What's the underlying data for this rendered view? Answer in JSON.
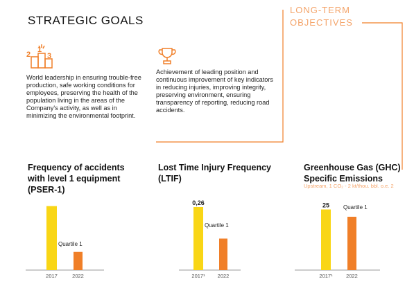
{
  "header": {
    "title": "STRATEGIC GOALS",
    "side_title": "LONG-TERM OBJECTIVES"
  },
  "goals": [
    {
      "text": "World leadership in ensuring trouble-free production, safe working conditions for employees, preserving the health of the population living in the areas of the Company's activity, as well as in minimizing the environmental footprint."
    },
    {
      "text": "Achievement of leading position and continuous improvement of key indicators in reducing injuries, improving integrity, preserving environment, ensuring transparency of reporting, reducing road accidents."
    }
  ],
  "chart_data": [
    {
      "type": "bar",
      "title": "Frequency of accidents with level 1 equipment (PSER-1)",
      "categories": [
        "2017",
        "2022"
      ],
      "values": [
        88,
        25
      ],
      "colors": [
        "#f9d616",
        "#f07f28"
      ],
      "ylim": [
        0,
        100
      ],
      "annotation": "Quartile 1"
    },
    {
      "type": "bar",
      "title": "Lost Time Injury Frequency (LTIF)",
      "categories": [
        "2017¹",
        "2022"
      ],
      "values": [
        0.26,
        0.13
      ],
      "value_labels": [
        "0,26",
        null
      ],
      "colors": [
        "#f9d616",
        "#f07f28"
      ],
      "ylim": [
        0,
        0.3
      ],
      "annotation": "Quartile 1"
    },
    {
      "type": "bar",
      "title": "Greenhouse Gas (GHC) Specific Emissions",
      "subtitle": "Upstream, 1 CO₂ - 2 kt/thou. bbl. o.e. 2",
      "categories": [
        "2017¹",
        "2022"
      ],
      "values": [
        25,
        22
      ],
      "value_labels": [
        "25",
        null
      ],
      "colors": [
        "#f9d616",
        "#f07f28"
      ],
      "ylim": [
        0,
        30
      ],
      "annotation": "Quartile 1"
    }
  ]
}
